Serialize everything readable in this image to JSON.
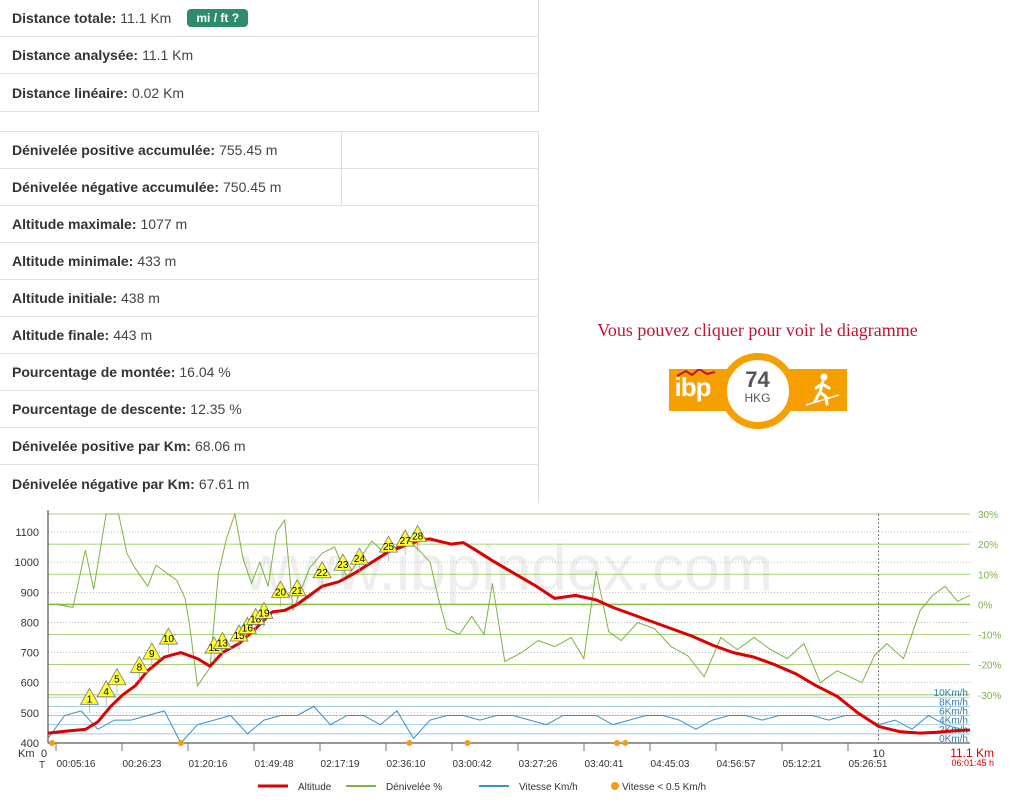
{
  "summary": {
    "rows": [
      {
        "label": "Distance totale:",
        "value": "11.1 Km"
      },
      {
        "label": "Distance analysée:",
        "value": "11.1 Km"
      },
      {
        "label": "Distance linéaire:",
        "value": "0.02 Km"
      }
    ],
    "unit_button": "mi / ft ?"
  },
  "elevation": {
    "rows": [
      {
        "label": "Dénivelée positive accumulée:",
        "value": "755.45 m"
      },
      {
        "label": "Dénivelée négative accumulée:",
        "value": "750.45 m"
      },
      {
        "label": "Altitude maximale:",
        "value": "1077 m"
      },
      {
        "label": "Altitude minimale:",
        "value": "433 m"
      },
      {
        "label": "Altitude initiale:",
        "value": "438 m"
      },
      {
        "label": "Altitude finale:",
        "value": "443 m"
      },
      {
        "label": "Pourcentage de montée:",
        "value": "16.04 %"
      },
      {
        "label": "Pourcentage de descente:",
        "value": "12.35 %"
      },
      {
        "label": "Dénivelée positive par Km:",
        "value": "68.06 m"
      },
      {
        "label": "Dénivelée négative par Km:",
        "value": "67.61 m"
      }
    ]
  },
  "ibp": {
    "hint": "Vous pouvez cliquer pour voir le diagramme",
    "logo": "ibp",
    "index": "74",
    "code": "HKG",
    "icon": "hiker-icon",
    "accent": "#f5a000"
  },
  "chart_data": {
    "type": "line",
    "watermark": "www.ibpindex.com",
    "x_km_axis": {
      "label": "Km",
      "start_label": "0",
      "mark_label": "10",
      "end_label": "11.1 Km",
      "range": [
        0,
        11.1
      ]
    },
    "time_axis": {
      "label": "T",
      "ticks": [
        "00:05:16",
        "00:26:23",
        "01:20:16",
        "01:49:48",
        "02:17:19",
        "02:36:10",
        "03:00:42",
        "03:27:26",
        "03:40:41",
        "04:45:03",
        "04:56:57",
        "05:12:21",
        "05:26:51"
      ],
      "end_label": "06:01:45 h"
    },
    "y_altitude": {
      "ticks": [
        400,
        500,
        600,
        700,
        800,
        900,
        1000,
        1100
      ],
      "range": [
        400,
        1160
      ]
    },
    "y_slope": {
      "ticks": [
        "30%",
        "20%",
        "10%",
        "0%",
        "-10%",
        "-20%",
        "-30%"
      ],
      "range": [
        -46,
        30
      ]
    },
    "y_speed": {
      "ticks": [
        "10Km/h",
        "8Km/h",
        "6Km/h",
        "4Km/h",
        "2Km/h",
        "0Km/h"
      ],
      "range": [
        0,
        50
      ]
    },
    "series": [
      {
        "name": "Altitude",
        "color": "#dd0000",
        "x": [
          0,
          0.25,
          0.45,
          0.6,
          0.75,
          0.9,
          1.05,
          1.2,
          1.4,
          1.6,
          1.8,
          1.95,
          2.1,
          2.3,
          2.5,
          2.7,
          2.85,
          3.0,
          3.15,
          3.3,
          3.5,
          3.7,
          3.9,
          4.1,
          4.3,
          4.5,
          4.6,
          4.7,
          4.85,
          5.0,
          5.15,
          5.35,
          5.6,
          5.85,
          6.1,
          6.35,
          6.6,
          6.8,
          7.0,
          7.25,
          7.5,
          7.75,
          8.0,
          8.25,
          8.5,
          8.75,
          9.0,
          9.25,
          9.5,
          9.75,
          10.0,
          10.25,
          10.5,
          10.7,
          10.9,
          11.1
        ],
        "values": [
          433,
          440,
          445,
          470,
          520,
          560,
          590,
          640,
          685,
          700,
          680,
          655,
          700,
          730,
          780,
          835,
          840,
          860,
          890,
          920,
          935,
          965,
          1000,
          1035,
          1055,
          1075,
          1077,
          1070,
          1060,
          1065,
          1040,
          1005,
          965,
          925,
          880,
          890,
          875,
          850,
          830,
          805,
          780,
          755,
          725,
          700,
          685,
          660,
          630,
          590,
          555,
          500,
          455,
          438,
          433,
          436,
          440,
          443
        ]
      },
      {
        "name": "Dénivelée %",
        "color": "#7cb342",
        "x": [
          0,
          0.1,
          0.3,
          0.45,
          0.55,
          0.7,
          0.85,
          0.95,
          1.05,
          1.2,
          1.3,
          1.45,
          1.55,
          1.65,
          1.7,
          1.8,
          1.95,
          2.05,
          2.15,
          2.25,
          2.35,
          2.45,
          2.55,
          2.65,
          2.75,
          2.85,
          2.95,
          3.05,
          3.15,
          3.3,
          3.45,
          3.6,
          3.75,
          3.9,
          4.05,
          4.2,
          4.35,
          4.5,
          4.6,
          4.7,
          4.8,
          4.95,
          5.1,
          5.25,
          5.35,
          5.5,
          5.7,
          5.9,
          6.1,
          6.3,
          6.45,
          6.6,
          6.75,
          6.9,
          7.1,
          7.3,
          7.5,
          7.7,
          7.9,
          8.1,
          8.3,
          8.5,
          8.7,
          8.9,
          9.1,
          9.3,
          9.5,
          9.65,
          9.8,
          9.95,
          10.1,
          10.3,
          10.5,
          10.65,
          10.8,
          10.95,
          11.1
        ],
        "values": [
          0,
          0,
          -1,
          18,
          5,
          30,
          30,
          17,
          12,
          6,
          13,
          10,
          8,
          2,
          -6,
          -27,
          -21,
          10,
          22,
          30,
          15,
          7,
          14,
          6,
          24,
          28,
          -2,
          5,
          12,
          17,
          19,
          9,
          15,
          21,
          17,
          19,
          21,
          17,
          14,
          2,
          -8,
          -10,
          -4,
          -10,
          7,
          -19,
          -16,
          -12,
          -14,
          -11,
          -18,
          11,
          -9,
          -12,
          -6,
          -8,
          -14,
          -17,
          -24,
          -11,
          -15,
          -11,
          -15,
          -18,
          -13,
          -26,
          -22,
          -24,
          -26,
          -17,
          -13,
          -18,
          -2,
          3,
          6,
          1,
          3
        ]
      },
      {
        "name": "Vitesse Km/h",
        "color": "#3b8fc5",
        "x": [
          0,
          0.2,
          0.4,
          0.6,
          0.8,
          1.0,
          1.2,
          1.4,
          1.6,
          1.8,
          2.0,
          2.2,
          2.4,
          2.6,
          2.8,
          3.0,
          3.2,
          3.4,
          3.6,
          3.8,
          4.0,
          4.2,
          4.4,
          4.6,
          4.8,
          5.0,
          5.2,
          5.4,
          5.6,
          5.8,
          6.0,
          6.2,
          6.4,
          6.6,
          6.8,
          7.0,
          7.2,
          7.4,
          7.6,
          7.8,
          8.0,
          8.2,
          8.4,
          8.6,
          8.8,
          9.0,
          9.2,
          9.4,
          9.6,
          9.8,
          10.0,
          10.2,
          10.4,
          10.6,
          10.8,
          11.0
        ],
        "values": [
          1,
          6,
          7,
          3,
          5,
          5,
          6,
          7,
          0,
          4,
          5,
          6,
          2,
          5,
          6,
          6,
          8,
          4,
          6,
          6,
          4,
          7,
          1,
          5,
          6,
          6,
          5,
          6,
          6,
          5,
          4,
          6,
          6,
          6,
          4,
          5,
          6,
          6,
          5,
          3,
          5,
          6,
          6,
          5,
          6,
          6,
          6,
          5,
          6,
          6,
          4,
          5,
          3,
          6,
          4,
          3
        ]
      },
      {
        "name": "Vitesse < 0.5 Km/h",
        "color": "#f39c12",
        "x": [
          0.05,
          1.6,
          4.35,
          5.05,
          6.85,
          6.95
        ],
        "values": [
          0,
          0,
          0,
          0,
          0,
          0
        ]
      }
    ],
    "waypoints": {
      "labels": [
        "1",
        "4",
        "5",
        "8",
        "9",
        "10",
        "12",
        "13",
        "15",
        "16",
        "18",
        "19",
        "20",
        "21",
        "22",
        "23",
        "24",
        "25",
        "27",
        "28"
      ],
      "x": [
        0.5,
        0.7,
        0.83,
        1.1,
        1.25,
        1.45,
        2.0,
        2.1,
        2.3,
        2.4,
        2.5,
        2.6,
        2.8,
        3.0,
        3.3,
        3.55,
        3.75,
        4.1,
        4.3,
        4.45
      ],
      "values": [
        545,
        570,
        610,
        650,
        695,
        745,
        715,
        730,
        755,
        780,
        810,
        830,
        900,
        905,
        965,
        990,
        1010,
        1050,
        1070,
        1085
      ]
    },
    "legend": {
      "placement": "bottom",
      "items": [
        "Altitude",
        "Dénivelée %",
        "Vitesse Km/h",
        "Vitesse < 0.5 Km/h"
      ]
    }
  }
}
